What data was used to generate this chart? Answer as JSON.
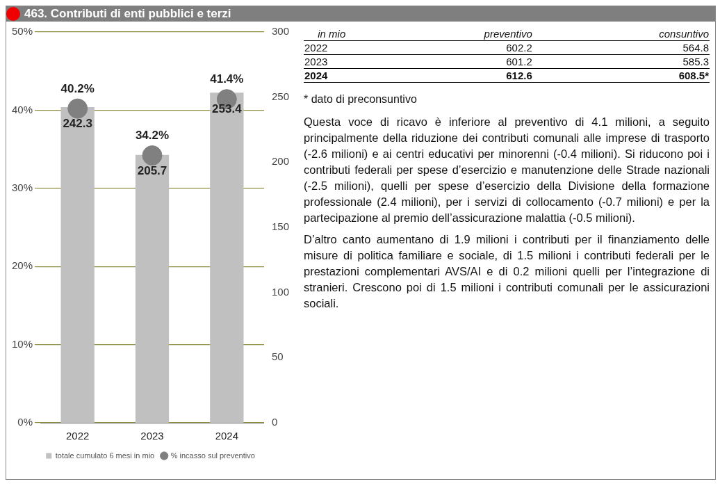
{
  "chart_data": [
    {
      "type": "bar",
      "title": "463. Contributi di enti pubblici e terzi",
      "categories": [
        "2022",
        "2023",
        "2024"
      ],
      "series": [
        {
          "name": "totale cumulato 6 mesi in mio",
          "type": "bar",
          "axis": "y2",
          "color": "#c0c0c0",
          "values": [
            242.3,
            205.7,
            253.4
          ]
        },
        {
          "name": "% incasso sul preventivo",
          "type": "scatter",
          "axis": "y",
          "color": "#808080",
          "values": [
            40.2,
            34.2,
            41.4
          ],
          "value_labels": [
            "40.2%",
            "34.2%",
            "41.4%"
          ]
        }
      ],
      "ylim": [
        0,
        50
      ],
      "yticks": [
        {
          "value": 0,
          "label": "0%"
        },
        {
          "value": 10,
          "label": "10%"
        },
        {
          "value": 20,
          "label": "20%"
        },
        {
          "value": 30,
          "label": "30%"
        },
        {
          "value": 40,
          "label": "40%"
        },
        {
          "value": 50,
          "label": "50%"
        }
      ],
      "y2lim": [
        0,
        300
      ],
      "y2ticks": [
        0,
        50,
        100,
        150,
        200,
        250,
        300
      ],
      "grid": "y",
      "legend": "bottom",
      "marker": "circle",
      "data_labels": true
    },
    {
      "type": "other",
      "xlabel": "in mio",
      "categories": [
        "2022",
        "2023",
        "2024"
      ],
      "series": [
        {
          "name": "preventivo",
          "values": [
            602.2,
            601.2,
            612.6
          ]
        },
        {
          "name": "consuntivo",
          "values": [
            564.8,
            585.3,
            608.5
          ],
          "value_labels": [
            "564.8",
            "585.3",
            "608.5*"
          ]
        }
      ],
      "data_labels": true,
      "annotations": [
        "* dato di preconsuntivo",
        "Questa voce di ricavo è inferiore al preventivo di 4.1 milioni, a seguito principalmente della riduzione dei contributi comunali alle imprese di trasporto (-2.6 milioni) e ai centri educativi per minorenni (-0.4 milioni). Si riducono poi i contributi federali per spese d’esercizio e manutenzione delle Strade nazionali (-2.5 milioni), quelli per spese d’esercizio della Divisione della formazione professionale (2.4 milioni), per i servizi di collocamento (-0.7 milioni) e per la partecipazione al premio dell’assicurazione malattia (-0.5 milioni).",
        "D’altro canto aumentano di 1.9 milioni i contributi per il finanziamento delle misure di politica familiare e sociale, di 1.5 milioni i contributi federali per le prestazioni complementari AVS/AI e di 0.2 milioni quelli per l’integrazione di stranieri. Crescono poi di 1.5 milioni i contributi comunali per le assicurazioni sociali."
      ]
    }
  ]
}
